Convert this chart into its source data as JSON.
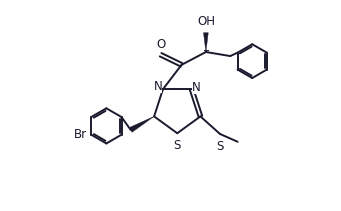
{
  "bg_color": "#ffffff",
  "line_color": "#1a1a2e",
  "line_width": 1.4,
  "font_size": 8.5,
  "figsize": [
    3.41,
    2.11
  ],
  "dpi": 100,
  "xlim": [
    0,
    10
  ],
  "ylim": [
    0,
    6.2
  ]
}
